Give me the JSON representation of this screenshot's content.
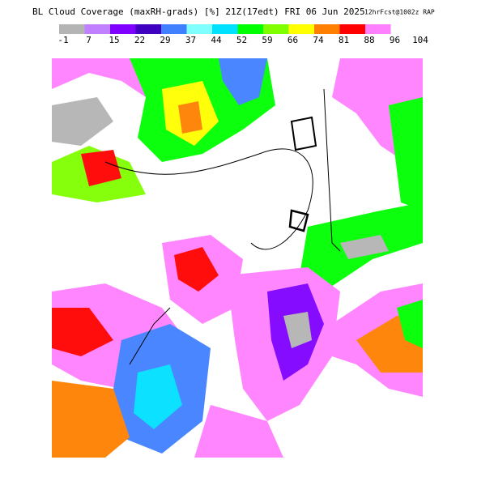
{
  "header": {
    "title": "BL Cloud Coverage (maxRH-grads) [%] 21Z(17edt) FRI 06 Jun 2025",
    "forecast": "12hrFcst@1002z RAP"
  },
  "legend": {
    "levels": [
      -1,
      7,
      15,
      22,
      29,
      37,
      44,
      52,
      59,
      66,
      74,
      81,
      88,
      96,
      104
    ],
    "colors": [
      "#b4b4b4",
      "#c080ff",
      "#8000ff",
      "#4000c0",
      "#4080ff",
      "#80ffff",
      "#00e0ff",
      "#00ff00",
      "#80ff00",
      "#ffff00",
      "#ff8000",
      "#ff0000",
      "#ff80ff"
    ]
  }
}
